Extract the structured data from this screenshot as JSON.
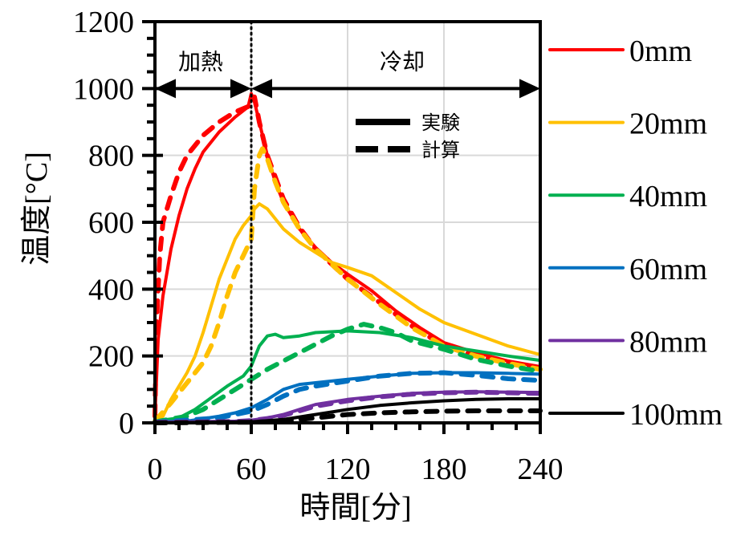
{
  "chart_data": {
    "type": "line",
    "title": "",
    "xlabel": "時間[分]",
    "ylabel": "温度[°C]",
    "xlim": [
      0,
      240
    ],
    "ylim": [
      0,
      1200
    ],
    "x_ticks": [
      0,
      60,
      120,
      180,
      240
    ],
    "x_tick_labels": [
      "0",
      "60",
      "120",
      "180",
      "240"
    ],
    "x_minor_step": 15,
    "y_ticks": [
      0,
      200,
      400,
      600,
      800,
      1000,
      1200
    ],
    "y_tick_labels": [
      "0",
      "200",
      "400",
      "600",
      "800",
      "1000",
      "1200"
    ],
    "y_minor_step": 50,
    "grid": true,
    "legend_position": "right-outside",
    "style_legend": [
      {
        "label": "実験",
        "dash": "solid"
      },
      {
        "label": "計算",
        "dash": "dashed"
      }
    ],
    "annotations": {
      "divider_x": 60,
      "phases": [
        {
          "label": "加熱",
          "from": 0,
          "to": 60,
          "y": 1000
        },
        {
          "label": "冷却",
          "from": 60,
          "to": 240,
          "y": 1000
        }
      ]
    },
    "series": [
      {
        "name": "0mm",
        "color": "#ff0000",
        "kind": "実験",
        "x": [
          0,
          2,
          5,
          10,
          15,
          20,
          25,
          30,
          40,
          50,
          58,
          60,
          62,
          65,
          70,
          75,
          80,
          90,
          100,
          110,
          120,
          135,
          150,
          165,
          180,
          200,
          220,
          240
        ],
        "y": [
          20,
          250,
          380,
          520,
          620,
          700,
          760,
          810,
          870,
          915,
          945,
          985,
          960,
          900,
          800,
          720,
          660,
          580,
          525,
          480,
          445,
          395,
          335,
          285,
          240,
          210,
          185,
          168
        ]
      },
      {
        "name": "0mm",
        "color": "#ff0000",
        "kind": "計算",
        "x": [
          0,
          1,
          3,
          5,
          10,
          15,
          20,
          30,
          40,
          50,
          60,
          62,
          65,
          70,
          80,
          90,
          100,
          120,
          140,
          160,
          180,
          200,
          220,
          240
        ],
        "y": [
          20,
          300,
          500,
          600,
          680,
          750,
          800,
          860,
          900,
          930,
          950,
          975,
          900,
          800,
          670,
          585,
          520,
          430,
          360,
          290,
          230,
          200,
          178,
          160
        ]
      },
      {
        "name": "20mm",
        "color": "#ffc000",
        "kind": "実験",
        "x": [
          0,
          5,
          10,
          20,
          25,
          30,
          35,
          40,
          45,
          50,
          55,
          60,
          62,
          65,
          70,
          80,
          90,
          100,
          110,
          120,
          135,
          150,
          165,
          180,
          200,
          220,
          240
        ],
        "y": [
          5,
          20,
          70,
          150,
          200,
          270,
          350,
          430,
          490,
          550,
          590,
          620,
          640,
          655,
          640,
          580,
          540,
          510,
          480,
          465,
          440,
          390,
          340,
          300,
          265,
          230,
          204
        ]
      },
      {
        "name": "20mm",
        "color": "#ffc000",
        "kind": "計算",
        "x": [
          0,
          10,
          20,
          30,
          35,
          40,
          45,
          50,
          55,
          60,
          62,
          65,
          67,
          70,
          75,
          80,
          90,
          100,
          120,
          140,
          160,
          180,
          200,
          220,
          240
        ],
        "y": [
          5,
          60,
          120,
          180,
          230,
          300,
          380,
          450,
          500,
          550,
          700,
          800,
          820,
          790,
          720,
          660,
          580,
          520,
          430,
          355,
          285,
          230,
          200,
          178,
          160
        ]
      },
      {
        "name": "40mm",
        "color": "#00b050",
        "kind": "実験",
        "x": [
          0,
          15,
          25,
          35,
          45,
          50,
          55,
          60,
          65,
          70,
          75,
          80,
          90,
          100,
          120,
          140,
          160,
          180,
          200,
          220,
          240
        ],
        "y": [
          5,
          15,
          40,
          75,
          110,
          125,
          140,
          170,
          230,
          260,
          265,
          255,
          260,
          270,
          275,
          270,
          255,
          230,
          215,
          200,
          187
        ]
      },
      {
        "name": "40mm",
        "color": "#00b050",
        "kind": "計算",
        "x": [
          0,
          20,
          30,
          40,
          50,
          60,
          70,
          80,
          90,
          100,
          110,
          120,
          130,
          140,
          150,
          160,
          180,
          200,
          220,
          240
        ],
        "y": [
          3,
          20,
          40,
          70,
          100,
          130,
          160,
          185,
          210,
          235,
          260,
          280,
          295,
          285,
          270,
          245,
          220,
          190,
          170,
          154
        ]
      },
      {
        "name": "60mm",
        "color": "#0070c0",
        "kind": "実験",
        "x": [
          0,
          20,
          40,
          50,
          60,
          70,
          80,
          90,
          100,
          120,
          140,
          160,
          180,
          200,
          220,
          240
        ],
        "y": [
          3,
          5,
          20,
          30,
          45,
          70,
          100,
          115,
          120,
          130,
          140,
          148,
          150,
          150,
          148,
          146
        ]
      },
      {
        "name": "60mm",
        "color": "#0070c0",
        "kind": "計算",
        "x": [
          0,
          40,
          60,
          70,
          80,
          90,
          100,
          120,
          140,
          160,
          180,
          200,
          220,
          240
        ],
        "y": [
          2,
          15,
          35,
          55,
          80,
          100,
          110,
          125,
          140,
          148,
          150,
          142,
          132,
          127
        ]
      },
      {
        "name": "80mm",
        "color": "#7030a0",
        "kind": "実験",
        "x": [
          0,
          50,
          60,
          70,
          80,
          90,
          100,
          120,
          140,
          160,
          180,
          200,
          220,
          240
        ],
        "y": [
          2,
          5,
          8,
          15,
          25,
          40,
          55,
          70,
          80,
          88,
          92,
          93,
          92,
          91
        ]
      },
      {
        "name": "80mm",
        "color": "#7030a0",
        "kind": "計算",
        "x": [
          0,
          50,
          60,
          70,
          80,
          90,
          100,
          120,
          140,
          160,
          180,
          200,
          220,
          240
        ],
        "y": [
          2,
          4,
          7,
          13,
          22,
          36,
          50,
          66,
          78,
          86,
          90,
          92,
          90,
          88
        ]
      },
      {
        "name": "100mm",
        "color": "#000000",
        "kind": "実験",
        "x": [
          0,
          60,
          80,
          100,
          120,
          140,
          160,
          180,
          200,
          220,
          240
        ],
        "y": [
          0,
          3,
          10,
          25,
          40,
          52,
          60,
          66,
          70,
          72,
          72
        ]
      },
      {
        "name": "100mm",
        "color": "#000000",
        "kind": "計算",
        "x": [
          0,
          60,
          80,
          100,
          120,
          140,
          160,
          180,
          200,
          220,
          240
        ],
        "y": [
          0,
          2,
          5,
          15,
          25,
          30,
          33,
          35,
          36,
          36,
          36
        ]
      }
    ],
    "legend": [
      {
        "label": "0mm",
        "color": "#ff0000"
      },
      {
        "label": "20mm",
        "color": "#ffc000"
      },
      {
        "label": "40mm",
        "color": "#00b050"
      },
      {
        "label": "60mm",
        "color": "#0070c0"
      },
      {
        "label": "80mm",
        "color": "#7030a0"
      },
      {
        "label": "100mm",
        "color": "#000000"
      }
    ]
  }
}
